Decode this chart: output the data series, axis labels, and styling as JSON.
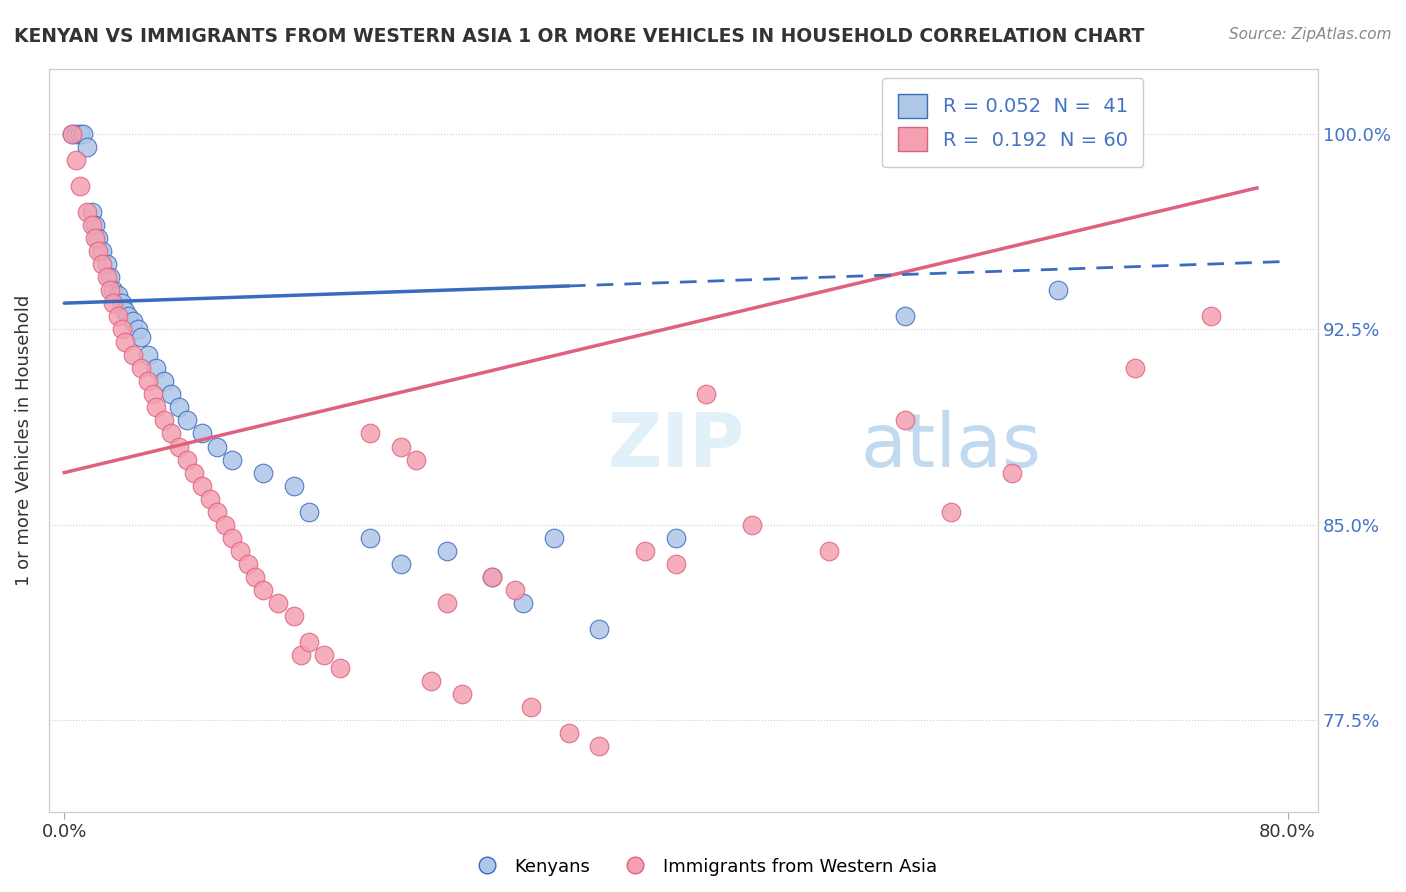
{
  "title": "KENYAN VS IMMIGRANTS FROM WESTERN ASIA 1 OR MORE VEHICLES IN HOUSEHOLD CORRELATION CHART",
  "source": "Source: ZipAtlas.com",
  "ylabel": "1 or more Vehicles in Household",
  "yticks": [
    100.0,
    92.5,
    85.0,
    77.5
  ],
  "xlim": [
    -0.01,
    0.82
  ],
  "ylim": [
    74.0,
    102.5
  ],
  "blue_R": 0.052,
  "blue_N": 41,
  "pink_R": 0.192,
  "pink_N": 60,
  "blue_color": "#aec6e8",
  "pink_color": "#f4a0b0",
  "blue_line_color": "#3a6bbf",
  "pink_line_color": "#e06080",
  "blue_slope": 2.0,
  "blue_intercept": 93.5,
  "blue_line_solid_end": 0.33,
  "blue_line_dash_end": 0.8,
  "pink_slope": 14.0,
  "pink_intercept": 87.0,
  "pink_line_end": 0.78,
  "blue_scatter_x": [
    0.005,
    0.008,
    0.01,
    0.012,
    0.015,
    0.018,
    0.02,
    0.022,
    0.025,
    0.028,
    0.03,
    0.032,
    0.035,
    0.038,
    0.04,
    0.042,
    0.045,
    0.048,
    0.05,
    0.055,
    0.06,
    0.065,
    0.07,
    0.075,
    0.08,
    0.09,
    0.1,
    0.11,
    0.13,
    0.15,
    0.16,
    0.2,
    0.22,
    0.25,
    0.28,
    0.3,
    0.32,
    0.35,
    0.4,
    0.55,
    0.65
  ],
  "blue_scatter_y": [
    100.0,
    100.0,
    100.0,
    100.0,
    99.5,
    97.0,
    96.5,
    96.0,
    95.5,
    95.0,
    94.5,
    94.0,
    93.8,
    93.5,
    93.2,
    93.0,
    92.8,
    92.5,
    92.2,
    91.5,
    91.0,
    90.5,
    90.0,
    89.5,
    89.0,
    88.5,
    88.0,
    87.5,
    87.0,
    86.5,
    85.5,
    84.5,
    83.5,
    84.0,
    83.0,
    82.0,
    84.5,
    81.0,
    84.5,
    93.0,
    94.0
  ],
  "pink_scatter_x": [
    0.005,
    0.008,
    0.01,
    0.015,
    0.018,
    0.02,
    0.022,
    0.025,
    0.028,
    0.03,
    0.032,
    0.035,
    0.038,
    0.04,
    0.045,
    0.05,
    0.055,
    0.058,
    0.06,
    0.065,
    0.07,
    0.075,
    0.08,
    0.085,
    0.09,
    0.095,
    0.1,
    0.105,
    0.11,
    0.115,
    0.12,
    0.125,
    0.13,
    0.14,
    0.15,
    0.155,
    0.16,
    0.17,
    0.18,
    0.2,
    0.22,
    0.23,
    0.24,
    0.25,
    0.26,
    0.28,
    0.295,
    0.305,
    0.33,
    0.35,
    0.38,
    0.4,
    0.42,
    0.45,
    0.5,
    0.55,
    0.58,
    0.62,
    0.7,
    0.75
  ],
  "pink_scatter_y": [
    100.0,
    99.0,
    98.0,
    97.0,
    96.5,
    96.0,
    95.5,
    95.0,
    94.5,
    94.0,
    93.5,
    93.0,
    92.5,
    92.0,
    91.5,
    91.0,
    90.5,
    90.0,
    89.5,
    89.0,
    88.5,
    88.0,
    87.5,
    87.0,
    86.5,
    86.0,
    85.5,
    85.0,
    84.5,
    84.0,
    83.5,
    83.0,
    82.5,
    82.0,
    81.5,
    80.0,
    80.5,
    80.0,
    79.5,
    88.5,
    88.0,
    87.5,
    79.0,
    82.0,
    78.5,
    83.0,
    82.5,
    78.0,
    77.0,
    76.5,
    84.0,
    83.5,
    90.0,
    85.0,
    84.0,
    89.0,
    85.5,
    87.0,
    91.0,
    93.0
  ]
}
